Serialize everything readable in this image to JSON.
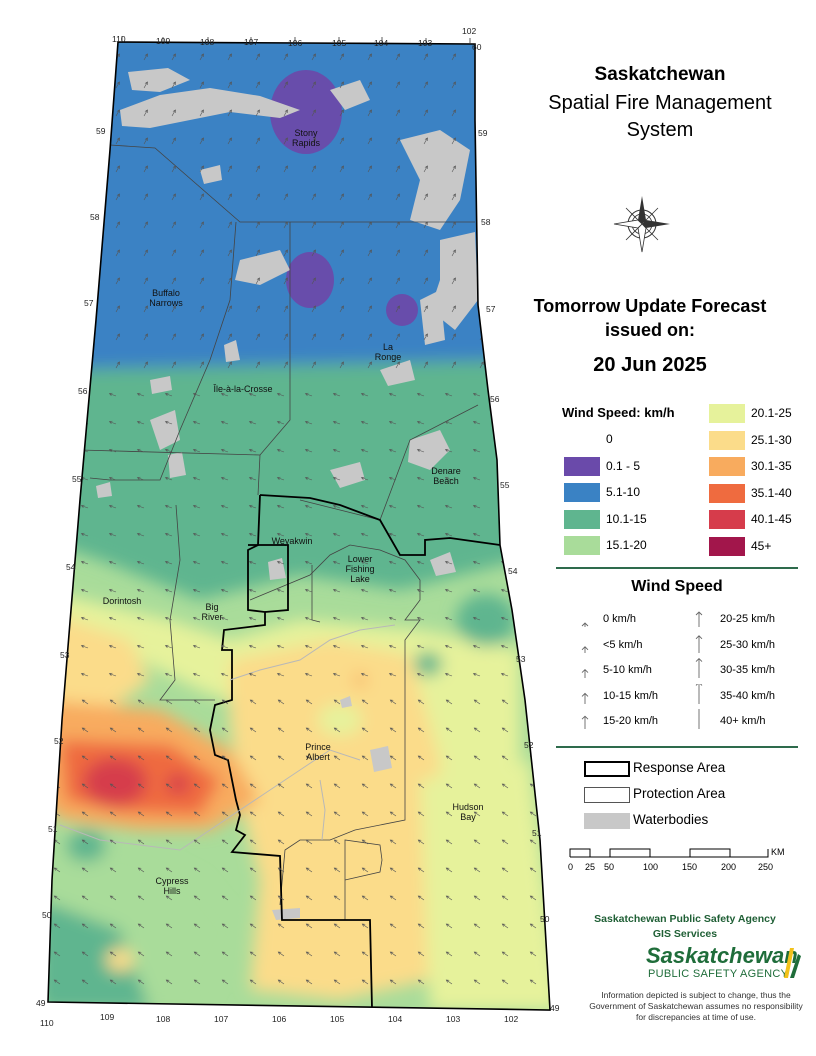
{
  "title": {
    "line1": "Saskatchewan",
    "line2": "Spatial Fire Management System"
  },
  "forecast": {
    "line1": "Tomorrow Update Forecast",
    "line2": "issued on:",
    "date": "20 Jun 2025"
  },
  "wind_legend": {
    "title": "Wind Speed: km/h",
    "classes": [
      {
        "label": "0",
        "color": "#ffffff"
      },
      {
        "label": "0.1 - 5",
        "color": "#6a4aaa"
      },
      {
        "label": "5.1-10",
        "color": "#3a82c4"
      },
      {
        "label": "10.1-15",
        "color": "#5fb58f"
      },
      {
        "label": "15.1-20",
        "color": "#a9dc9a"
      },
      {
        "label": "20.1-25",
        "color": "#e6f29b"
      },
      {
        "label": "25.1-30",
        "color": "#fbdc8a"
      },
      {
        "label": "30.1-35",
        "color": "#f8ab5e"
      },
      {
        "label": "35.1-40",
        "color": "#ef6b3f"
      },
      {
        "label": "40.1-45",
        "color": "#d63c4b"
      },
      {
        "label": "45+",
        "color": "#a2164b"
      }
    ]
  },
  "arrow_legend": {
    "title": "Wind Speed",
    "items": [
      {
        "label": "0 km/h"
      },
      {
        "label": "<5 km/h"
      },
      {
        "label": "5-10 km/h"
      },
      {
        "label": "10-15 km/h"
      },
      {
        "label": "15-20 km/h"
      },
      {
        "label": "20-25 km/h"
      },
      {
        "label": "25-30 km/h"
      },
      {
        "label": "30-35 km/h"
      },
      {
        "label": "35-40 km/h"
      },
      {
        "label": "40+ km/h"
      }
    ]
  },
  "boundary_legend": {
    "response": "Response Area",
    "protection": "Protection Area",
    "water": "Waterbodies"
  },
  "scale_bar": {
    "ticks": [
      "0",
      "25",
      "50",
      "100",
      "150",
      "200",
      "250"
    ],
    "unit": "KM"
  },
  "agency": {
    "line1": "Saskatchewan Public Safety Agency",
    "line2": "GIS  Services",
    "logo_word": "Saskatchewan",
    "logo_sub": "PUBLIC SAFETY AGENCY",
    "disclaimer": "Information depicted is subject to change, thus the Government of Saskatchewan assumes no responsibility for discrepancies at time of use."
  },
  "map": {
    "longitudes_top": [
      "110",
      "109",
      "108",
      "107",
      "106",
      "105",
      "104",
      "103",
      "102"
    ],
    "longitudes_bottom": [
      "110",
      "109",
      "108",
      "107",
      "106",
      "105",
      "104",
      "103",
      "102"
    ],
    "latitudes": [
      "60",
      "59",
      "58",
      "57",
      "56",
      "55",
      "54",
      "53",
      "52",
      "51",
      "50",
      "49"
    ],
    "places": [
      {
        "name": "Stony\nRapids"
      },
      {
        "name": "Buffalo\nNarrows"
      },
      {
        "name": "La\nRonge"
      },
      {
        "name": "Île-à-la-Crosse"
      },
      {
        "name": "Denare\nBeach"
      },
      {
        "name": "Weyakwin"
      },
      {
        "name": "Lower\nFishing\nLake"
      },
      {
        "name": "Dorintosh"
      },
      {
        "name": "Big\nRiver"
      },
      {
        "name": "Prince\nAlbert"
      },
      {
        "name": "Hudson\nBay"
      },
      {
        "name": "Cypress\nHills"
      }
    ]
  }
}
